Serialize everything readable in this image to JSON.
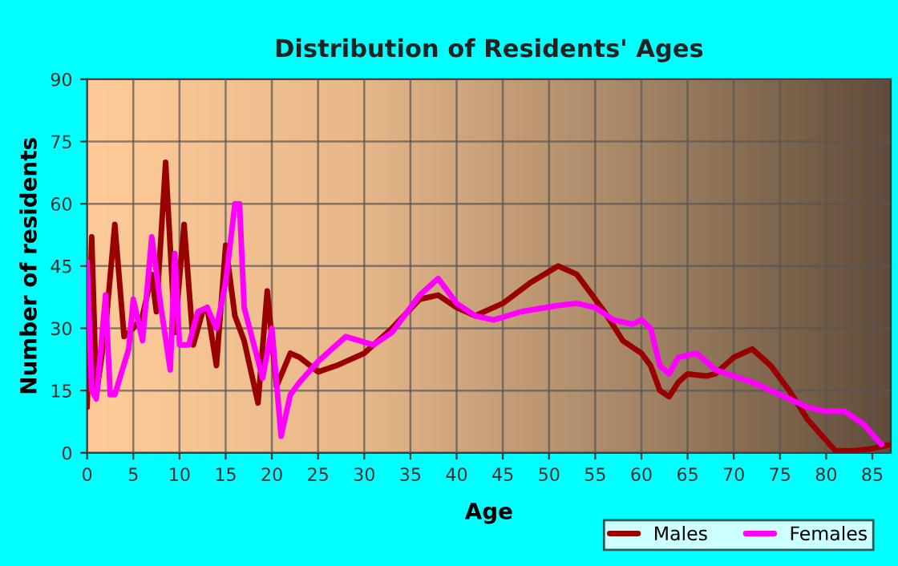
{
  "chart_data": {
    "type": "line",
    "title": "Distribution of Residents' Ages",
    "xlabel": "Age",
    "ylabel": "Number of residents",
    "xlim": [
      0,
      87
    ],
    "xticks": [
      0,
      5,
      10,
      15,
      20,
      25,
      30,
      35,
      40,
      45,
      50,
      55,
      60,
      65,
      70,
      75,
      80,
      85
    ],
    "ylim": [
      0,
      90
    ],
    "yticks": [
      0,
      15,
      30,
      45,
      60,
      75,
      90
    ],
    "grid": true,
    "legend": "bottom right",
    "line_style": "solid",
    "series": [
      {
        "name": "Males",
        "color": "#990000",
        "x": [
          0,
          0.5,
          1,
          2,
          3,
          4,
          5,
          6,
          7,
          7.5,
          8.5,
          9.5,
          10.5,
          11.5,
          12.5,
          13,
          14,
          15,
          16,
          17,
          18.5,
          19.5,
          20.5,
          22,
          23,
          25,
          27,
          30,
          33,
          36,
          38,
          40,
          42,
          45,
          48,
          51,
          53,
          56,
          58,
          60,
          61,
          62,
          63,
          64,
          65,
          67,
          68,
          70,
          72,
          74,
          76,
          78,
          80,
          81,
          83,
          85,
          87
        ],
        "values": [
          11,
          52,
          14,
          30,
          55,
          28,
          30,
          33,
          43,
          34,
          70,
          29,
          55,
          26,
          34,
          35,
          21,
          50,
          33,
          27,
          12,
          39,
          16,
          24,
          23,
          19.5,
          21,
          24,
          30,
          37,
          38,
          35,
          33,
          36,
          41,
          45,
          43,
          34,
          27,
          24,
          21,
          15,
          13.5,
          17,
          19,
          18.5,
          19,
          23,
          25,
          21,
          15,
          8,
          3,
          0.5,
          0.5,
          1,
          2
        ]
      },
      {
        "name": "Females",
        "color": "#ff00ff",
        "x": [
          0,
          0.5,
          1,
          2,
          2.5,
          3,
          4.5,
          5,
          6,
          7,
          8,
          9,
          9.5,
          10,
          11,
          12,
          13,
          14,
          15,
          16,
          16.5,
          17,
          19,
          20,
          21,
          22,
          23,
          25,
          28,
          31,
          33,
          36,
          38,
          40,
          42,
          44,
          47,
          51,
          53,
          55,
          57,
          59,
          60,
          61,
          62,
          63,
          64,
          66,
          68,
          72,
          74,
          78,
          80,
          82,
          84,
          86
        ],
        "values": [
          46,
          15,
          13,
          38,
          14,
          14,
          25,
          37,
          27,
          52,
          35,
          20,
          48,
          26,
          26,
          34,
          35,
          30,
          41,
          60,
          60,
          35,
          18,
          30,
          4,
          14,
          17,
          22,
          28,
          26,
          29,
          38,
          42,
          36,
          33,
          32,
          34,
          35.5,
          36,
          35,
          32,
          31,
          32,
          30,
          21,
          19,
          23,
          24,
          20,
          17,
          15,
          11,
          10,
          10,
          7,
          2
        ]
      }
    ]
  }
}
